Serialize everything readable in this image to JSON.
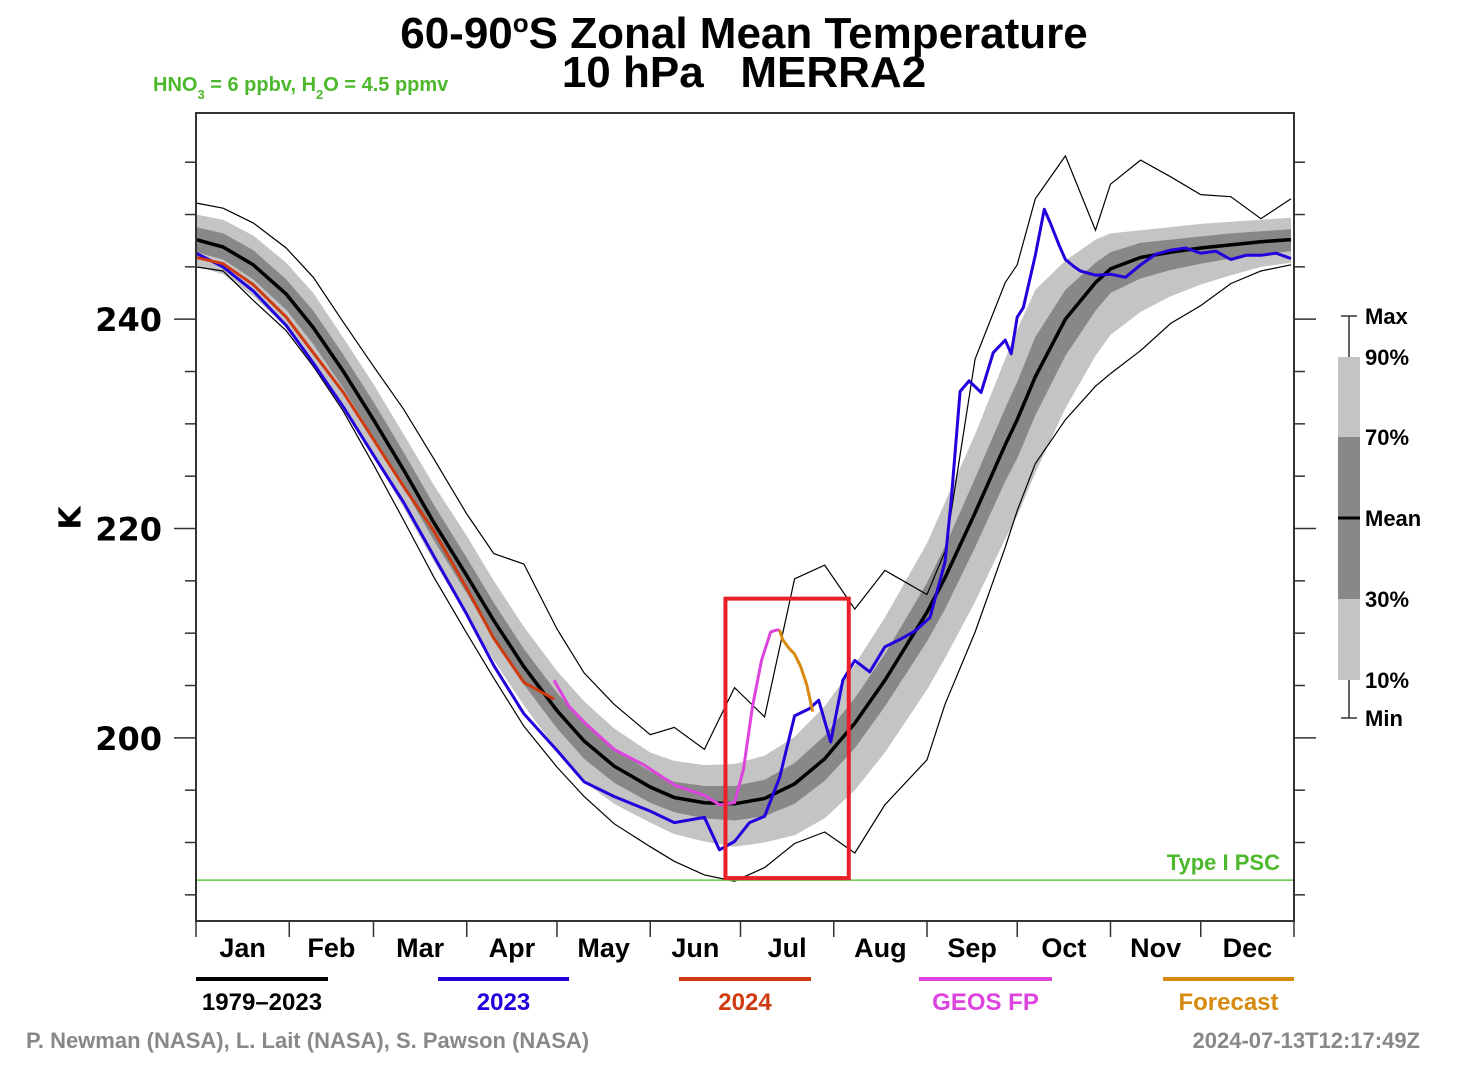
{
  "chart_data": {
    "type": "line",
    "title": "60-90°S Zonal Mean Temperature",
    "title_parts": {
      "prefix": "60-90",
      "degree": "o",
      "suffix": "S Zonal Mean Temperature"
    },
    "subtitle": "10 hPa   MERRA2",
    "annotation_chemistry": {
      "hno3_prefix": "HNO",
      "hno3_sub": "3",
      "hno3_suffix": " = 6 ppbv, H",
      "h2o_sub": "2",
      "h2o_suffix": "O = 4.5 ppmv"
    },
    "ylabel": "K",
    "xlabel": "",
    "xlim": [
      1,
      366
    ],
    "ylim": [
      182.5,
      259.7
    ],
    "yticks_major": [
      200,
      220,
      240
    ],
    "yticks_minor_step": 5,
    "grid": false,
    "month_labels": [
      "Jan",
      "Feb",
      "Mar",
      "Apr",
      "May",
      "Jun",
      "Jul",
      "Aug",
      "Sep",
      "Oct",
      "Nov",
      "Dec"
    ],
    "month_start_days": [
      1,
      32,
      60,
      91,
      121,
      152,
      182,
      213,
      244,
      274,
      305,
      335,
      366
    ],
    "psc_threshold": {
      "value": 186.4,
      "label": "Type I PSC",
      "color": "#62c646"
    },
    "highlight_box": {
      "x_range_days": [
        177,
        218
      ],
      "y_range_K": [
        186.6,
        213.3
      ],
      "color": "#e8202a"
    },
    "climatology": {
      "years": "1979–2023",
      "days": [
        1,
        10,
        20,
        31,
        40,
        50,
        60,
        70,
        80,
        91,
        100,
        110,
        121,
        130,
        140,
        152,
        160,
        170,
        180,
        190,
        200,
        210,
        220,
        230,
        244,
        250,
        260,
        270,
        274,
        280,
        290,
        300,
        305,
        315,
        325,
        335,
        345,
        355,
        365
      ],
      "mean": [
        247.6,
        246.9,
        245.2,
        242.4,
        239.2,
        235.0,
        230.4,
        225.6,
        220.6,
        215.5,
        211.2,
        206.8,
        202.6,
        199.7,
        197.3,
        195.3,
        194.3,
        193.8,
        193.7,
        194.2,
        195.6,
        198.0,
        201.4,
        205.5,
        212.0,
        215.3,
        221.5,
        228.0,
        230.4,
        234.5,
        240.0,
        243.5,
        244.8,
        245.9,
        246.4,
        246.8,
        247.1,
        247.4,
        247.6
      ],
      "p70": [
        248.8,
        248.2,
        246.6,
        243.8,
        240.8,
        236.6,
        232.1,
        227.3,
        222.3,
        217.2,
        212.9,
        208.5,
        204.3,
        201.4,
        198.9,
        196.8,
        195.8,
        195.4,
        195.4,
        196.0,
        197.6,
        200.2,
        203.8,
        208.0,
        214.8,
        218.3,
        224.8,
        231.5,
        234.0,
        238.3,
        242.8,
        245.4,
        246.4,
        247.3,
        247.6,
        247.9,
        248.2,
        248.4,
        248.6
      ],
      "p30": [
        246.4,
        245.7,
        243.8,
        240.9,
        237.6,
        233.4,
        228.7,
        223.9,
        218.9,
        213.8,
        209.5,
        205.1,
        200.9,
        198.0,
        195.7,
        193.8,
        192.9,
        192.3,
        192.1,
        192.5,
        193.7,
        195.9,
        199.0,
        203.0,
        209.2,
        212.3,
        218.2,
        224.5,
        226.7,
        230.8,
        236.5,
        240.8,
        242.5,
        243.9,
        244.7,
        245.3,
        245.8,
        246.2,
        246.5
      ],
      "p90": [
        250.0,
        249.5,
        248.0,
        245.4,
        242.5,
        238.2,
        233.8,
        229.0,
        224.2,
        219.3,
        215.0,
        210.6,
        206.4,
        203.5,
        200.9,
        198.6,
        197.8,
        197.4,
        197.5,
        198.3,
        200.1,
        203.0,
        207.0,
        211.5,
        218.6,
        222.5,
        229.0,
        236.2,
        239.0,
        242.8,
        245.6,
        247.6,
        248.2,
        248.5,
        248.8,
        249.1,
        249.3,
        249.5,
        249.7
      ],
      "p10": [
        245.1,
        244.3,
        242.2,
        239.2,
        235.8,
        231.6,
        226.9,
        222.0,
        216.9,
        211.6,
        207.4,
        203.1,
        198.8,
        195.8,
        193.7,
        191.9,
        190.8,
        190.1,
        189.6,
        190.0,
        190.7,
        192.3,
        195.0,
        198.6,
        204.6,
        207.6,
        213.0,
        219.0,
        221.2,
        225.3,
        231.5,
        236.5,
        238.5,
        240.7,
        242.2,
        243.3,
        244.2,
        245.0,
        245.4
      ],
      "max": [
        251.1,
        250.6,
        249.2,
        246.8,
        244.0,
        239.7,
        235.5,
        231.4,
        226.7,
        221.4,
        217.6,
        216.6,
        210.4,
        206.2,
        203.2,
        200.3,
        201.0,
        198.9,
        204.8,
        202.0,
        215.2,
        216.5,
        212.3,
        216.0,
        213.7,
        217.8,
        236.2,
        243.5,
        245.2,
        251.5,
        255.6,
        248.5,
        252.9,
        255.2,
        253.6,
        251.9,
        251.7,
        249.6,
        251.5
      ],
      "min": [
        245.0,
        244.6,
        241.8,
        238.9,
        235.5,
        231.2,
        226.1,
        220.8,
        215.4,
        210.0,
        205.7,
        201.1,
        197.2,
        194.4,
        191.8,
        189.6,
        188.2,
        186.9,
        186.3,
        187.6,
        189.9,
        191.0,
        189.0,
        193.6,
        197.9,
        203.2,
        210.1,
        218.2,
        221.7,
        226.2,
        230.4,
        233.6,
        234.8,
        237.0,
        239.6,
        241.3,
        243.4,
        244.6,
        245.2
      ]
    },
    "series": [
      {
        "name": "2023",
        "color": "#2200dd",
        "days": [
          1,
          10,
          20,
          31,
          40,
          50,
          60,
          70,
          80,
          91,
          100,
          110,
          121,
          130,
          140,
          152,
          160,
          170,
          175,
          180,
          185,
          190,
          195,
          200,
          205,
          208,
          212,
          216,
          220,
          225,
          230,
          235,
          240,
          245,
          250,
          252,
          255,
          258,
          262,
          266,
          270,
          272,
          274,
          276,
          280,
          283,
          285,
          288,
          290,
          293,
          295,
          300,
          305,
          310,
          315,
          320,
          325,
          330,
          335,
          340,
          345,
          350,
          355,
          360,
          365
        ],
        "values": [
          246.3,
          245.0,
          242.7,
          239.4,
          235.8,
          231.6,
          227.0,
          222.5,
          217.4,
          211.8,
          206.9,
          202.3,
          198.8,
          195.8,
          194.4,
          193.0,
          191.9,
          192.4,
          189.3,
          190.1,
          191.9,
          192.5,
          196.2,
          202.1,
          202.8,
          203.6,
          199.6,
          205.5,
          207.4,
          206.3,
          208.7,
          209.4,
          210.2,
          211.5,
          216.8,
          222.6,
          233.1,
          234.1,
          233.0,
          236.8,
          238.0,
          236.7,
          240.2,
          241.1,
          246.1,
          250.5,
          249.2,
          247.0,
          245.7,
          245.0,
          244.6,
          244.2,
          244.3,
          244.0,
          245.2,
          246.2,
          246.6,
          246.8,
          246.3,
          246.5,
          245.7,
          246.1,
          246.1,
          246.3,
          245.8
        ]
      },
      {
        "name": "2024",
        "color": "#d03a10",
        "days": [
          1,
          10,
          20,
          31,
          40,
          50,
          60,
          70,
          80,
          91,
          100,
          110,
          120
        ],
        "values": [
          245.9,
          245.3,
          243.3,
          240.2,
          236.8,
          233.0,
          228.5,
          224.0,
          219.8,
          214.3,
          209.5,
          205.3,
          203.7
        ]
      },
      {
        "name": "GEOS FP",
        "color": "#dd44dd",
        "days": [
          120,
          125,
          130,
          140,
          150,
          160,
          170,
          175,
          180,
          183,
          186,
          189,
          192,
          194,
          195
        ],
        "values": [
          205.5,
          203.0,
          201.5,
          198.9,
          197.4,
          195.5,
          194.5,
          193.6,
          193.8,
          197.0,
          203.0,
          207.4,
          210.1,
          210.3,
          210.3
        ]
      },
      {
        "name": "Forecast",
        "color": "#d88a10",
        "days": [
          195,
          196,
          198,
          200,
          202,
          204,
          206
        ],
        "values": [
          210.3,
          209.4,
          208.6,
          208.0,
          206.8,
          205.1,
          202.5
        ]
      }
    ],
    "legend": {
      "placement": "bottom",
      "entries": [
        {
          "label": "1979–2023",
          "color": "#000000"
        },
        {
          "label": "2023",
          "color": "#2200dd"
        },
        {
          "label": "2024",
          "color": "#d03a10"
        },
        {
          "label": "GEOS FP",
          "color": "#dd44dd"
        },
        {
          "label": "Forecast",
          "color": "#d88a10"
        }
      ]
    },
    "percentile_key": {
      "placement": "right",
      "labels": [
        "Max",
        "90%",
        "70%",
        "Mean",
        "30%",
        "10%",
        "Min"
      ],
      "band_colors": {
        "outer": "#c4c4c4",
        "inner": "#888888",
        "mean": "#000000"
      }
    }
  },
  "credits": {
    "authors": "P. Newman (NASA), L. Lait (NASA), S. Pawson (NASA)",
    "timestamp": "2024-07-13T12:17:49Z"
  }
}
